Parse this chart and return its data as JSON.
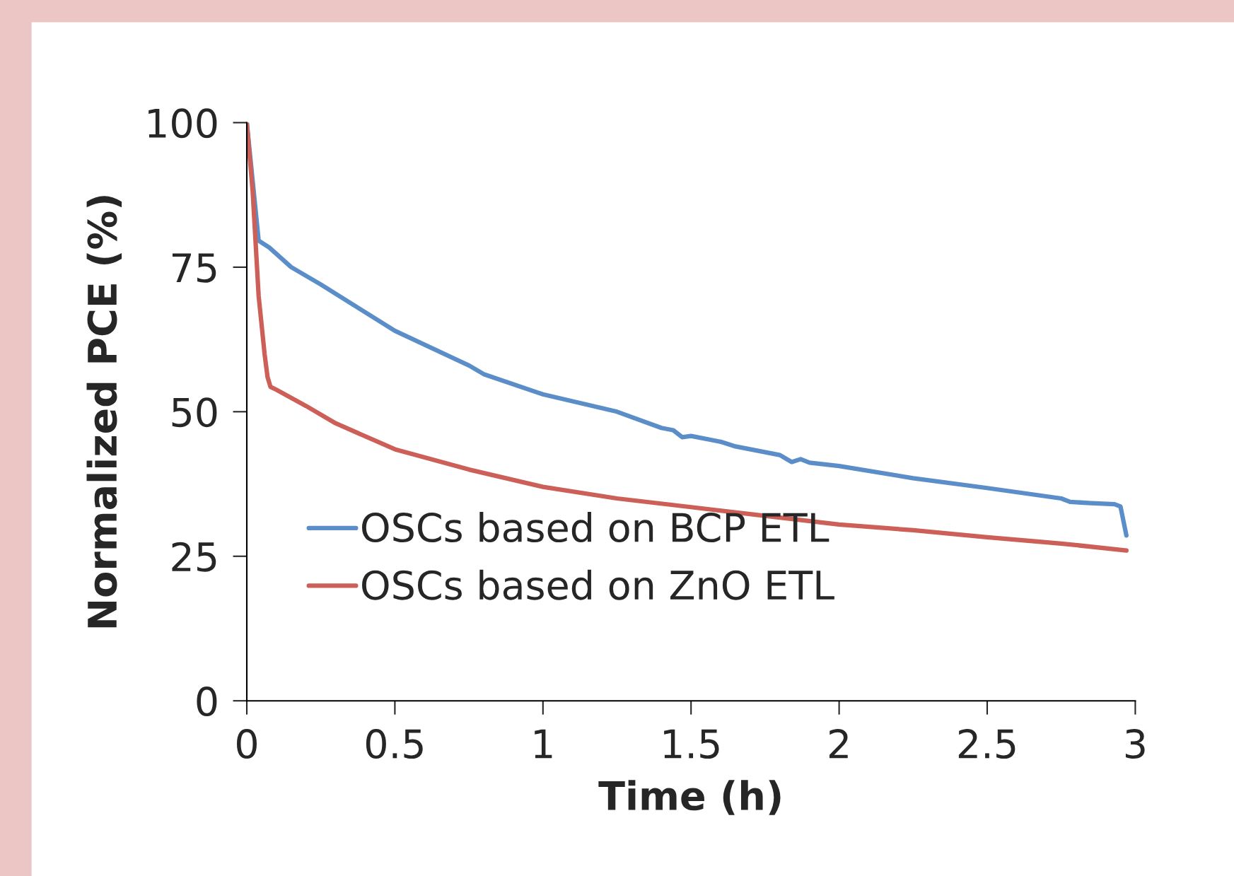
{
  "chart_data": {
    "type": "line",
    "xlabel": "Time (h)",
    "ylabel": "Normalized PCE (%)",
    "xlim": [
      0,
      3
    ],
    "ylim": [
      0,
      100
    ],
    "xticks": [
      0,
      0.5,
      1,
      1.5,
      2,
      2.5,
      3
    ],
    "yticks": [
      0,
      25,
      50,
      75,
      100
    ],
    "grid": false,
    "legend": "bottom left",
    "marker": "none",
    "line_style": "solid",
    "series": [
      {
        "name": "OSCs based on BCP ETL",
        "color": "#5b8ec8",
        "x": [
          0,
          0.04,
          0.076,
          0.15,
          0.25,
          0.5,
          0.75,
          0.8,
          1.0,
          1.25,
          1.4,
          1.44,
          1.47,
          1.5,
          1.6,
          1.65,
          1.8,
          1.84,
          1.87,
          1.9,
          2.0,
          2.25,
          2.5,
          2.75,
          2.78,
          2.85,
          2.93,
          2.95,
          2.97
        ],
        "values": [
          100,
          79.6,
          78.4,
          75,
          72,
          64,
          58,
          56.5,
          53,
          50,
          47.2,
          46.8,
          45.6,
          45.8,
          44.8,
          44,
          42.5,
          41.3,
          41.8,
          41.2,
          40.6,
          38.5,
          36.8,
          35,
          34.4,
          34.2,
          34,
          33.6,
          28.6
        ]
      },
      {
        "name": "OSCs based on ZnO ETL",
        "color": "#cc5f57",
        "x": [
          0,
          0.02,
          0.04,
          0.06,
          0.07,
          0.08,
          0.1,
          0.2,
          0.3,
          0.5,
          0.75,
          1.0,
          1.25,
          1.5,
          1.75,
          2.0,
          2.25,
          2.5,
          2.75,
          2.97
        ],
        "values": [
          100,
          88,
          70,
          60,
          56,
          54.3,
          53.8,
          51,
          48,
          43.5,
          40,
          37,
          35,
          33.5,
          32,
          30.5,
          29.5,
          28.3,
          27.2,
          26
        ]
      }
    ]
  }
}
